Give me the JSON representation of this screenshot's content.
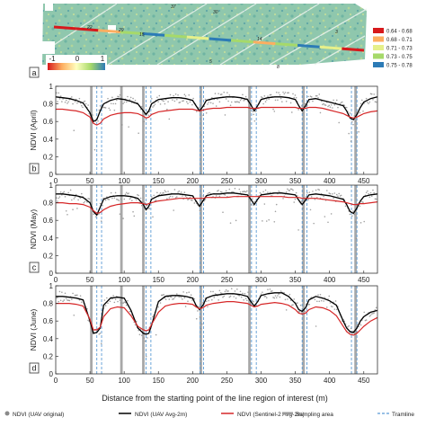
{
  "panel_a": {
    "panel_label": "a",
    "colorbar_ticks": [
      "-1",
      "0",
      "1"
    ],
    "legend": [
      {
        "label": "0.64 - 0.68",
        "color": "#d7191c"
      },
      {
        "label": "0.68 - 0.71",
        "color": "#fdae61"
      },
      {
        "label": "0.71 - 0.73",
        "color": "#e6f08a"
      },
      {
        "label": "0.73 - 0.75",
        "color": "#a6d96a"
      },
      {
        "label": "0.75 - 0.78",
        "color": "#2c7bb6"
      }
    ],
    "map_labels": [
      "37",
      "30",
      "22",
      "29",
      "15",
      "14",
      "5",
      "8",
      "3"
    ]
  },
  "chart_data": [
    {
      "type": "line",
      "panel_label": "b",
      "xlabel": "",
      "ylabel": "NDVI (April)",
      "xlim": [
        0,
        470
      ],
      "ylim": [
        0,
        1
      ],
      "xticks": [
        0,
        50,
        100,
        150,
        200,
        250,
        300,
        350,
        400,
        450
      ],
      "yticks": [
        0,
        0.2,
        0.4,
        0.6,
        0.8,
        1
      ],
      "x": [
        0,
        10,
        20,
        30,
        40,
        50,
        55,
        60,
        65,
        70,
        80,
        90,
        100,
        110,
        120,
        128,
        132,
        136,
        140,
        150,
        160,
        170,
        180,
        190,
        200,
        205,
        210,
        215,
        220,
        230,
        240,
        250,
        260,
        270,
        280,
        285,
        290,
        295,
        300,
        310,
        320,
        330,
        340,
        350,
        355,
        360,
        365,
        370,
        380,
        390,
        400,
        410,
        420,
        425,
        430,
        435,
        440,
        445,
        450,
        460,
        470
      ],
      "series": [
        {
          "name": "NDVI (UAV Avg-2m)",
          "color": "#000000",
          "values": [
            0.88,
            0.87,
            0.86,
            0.84,
            0.81,
            0.7,
            0.6,
            0.62,
            0.72,
            0.8,
            0.84,
            0.86,
            0.85,
            0.83,
            0.8,
            0.72,
            0.68,
            0.72,
            0.8,
            0.85,
            0.86,
            0.87,
            0.87,
            0.86,
            0.84,
            0.78,
            0.72,
            0.77,
            0.84,
            0.86,
            0.87,
            0.88,
            0.88,
            0.87,
            0.85,
            0.79,
            0.72,
            0.78,
            0.85,
            0.87,
            0.88,
            0.88,
            0.87,
            0.85,
            0.78,
            0.72,
            0.78,
            0.85,
            0.86,
            0.84,
            0.82,
            0.8,
            0.78,
            0.72,
            0.64,
            0.62,
            0.68,
            0.76,
            0.82,
            0.86,
            0.88
          ]
        },
        {
          "name": "NDVI (Sentinel-2 Avg-2m)",
          "color": "#d62728",
          "values": [
            0.74,
            0.74,
            0.73,
            0.72,
            0.7,
            0.65,
            0.58,
            0.56,
            0.58,
            0.63,
            0.67,
            0.69,
            0.7,
            0.7,
            0.69,
            0.66,
            0.64,
            0.65,
            0.68,
            0.71,
            0.72,
            0.73,
            0.74,
            0.74,
            0.74,
            0.73,
            0.72,
            0.73,
            0.74,
            0.75,
            0.75,
            0.76,
            0.76,
            0.76,
            0.76,
            0.75,
            0.75,
            0.75,
            0.76,
            0.76,
            0.76,
            0.76,
            0.76,
            0.76,
            0.75,
            0.75,
            0.75,
            0.76,
            0.76,
            0.75,
            0.73,
            0.71,
            0.69,
            0.67,
            0.65,
            0.64,
            0.65,
            0.67,
            0.69,
            0.71,
            0.72
          ]
        }
      ],
      "sampling_areas": [
        52,
        96,
        128,
        212,
        283,
        362,
        438
      ],
      "tramlines": [
        60,
        67,
        132,
        139,
        211,
        216,
        286,
        293,
        360,
        367,
        432,
        440
      ]
    },
    {
      "type": "line",
      "panel_label": "c",
      "xlabel": "",
      "ylabel": "NDVI (May)",
      "xlim": [
        0,
        470
      ],
      "ylim": [
        0,
        1
      ],
      "xticks": [
        0,
        50,
        100,
        150,
        200,
        250,
        300,
        350,
        400,
        450
      ],
      "yticks": [
        0,
        0.2,
        0.4,
        0.6,
        0.8,
        1
      ],
      "x": [
        0,
        10,
        20,
        30,
        40,
        50,
        55,
        60,
        65,
        70,
        80,
        90,
        100,
        110,
        120,
        128,
        132,
        136,
        140,
        150,
        160,
        170,
        180,
        190,
        200,
        205,
        210,
        215,
        220,
        230,
        240,
        250,
        260,
        270,
        280,
        285,
        290,
        295,
        300,
        310,
        320,
        330,
        340,
        350,
        355,
        360,
        365,
        370,
        380,
        390,
        400,
        410,
        420,
        425,
        430,
        435,
        440,
        445,
        450,
        460,
        470
      ],
      "series": [
        {
          "name": "NDVI (UAV Avg-2m)",
          "color": "#000000",
          "values": [
            0.9,
            0.9,
            0.89,
            0.88,
            0.86,
            0.8,
            0.7,
            0.66,
            0.75,
            0.84,
            0.87,
            0.88,
            0.88,
            0.87,
            0.85,
            0.78,
            0.72,
            0.76,
            0.84,
            0.88,
            0.89,
            0.9,
            0.9,
            0.89,
            0.88,
            0.82,
            0.76,
            0.82,
            0.88,
            0.9,
            0.9,
            0.91,
            0.91,
            0.9,
            0.89,
            0.84,
            0.78,
            0.84,
            0.89,
            0.9,
            0.91,
            0.91,
            0.9,
            0.89,
            0.83,
            0.78,
            0.83,
            0.89,
            0.9,
            0.89,
            0.88,
            0.86,
            0.84,
            0.78,
            0.7,
            0.68,
            0.74,
            0.82,
            0.87,
            0.89,
            0.9
          ]
        },
        {
          "name": "NDVI (Sentinel-2 Avg-2m)",
          "color": "#d62728",
          "values": [
            0.8,
            0.8,
            0.79,
            0.79,
            0.78,
            0.75,
            0.71,
            0.68,
            0.69,
            0.72,
            0.76,
            0.78,
            0.79,
            0.8,
            0.8,
            0.79,
            0.78,
            0.79,
            0.8,
            0.82,
            0.83,
            0.84,
            0.85,
            0.85,
            0.85,
            0.85,
            0.85,
            0.85,
            0.86,
            0.86,
            0.86,
            0.86,
            0.87,
            0.87,
            0.87,
            0.87,
            0.87,
            0.87,
            0.87,
            0.87,
            0.87,
            0.87,
            0.86,
            0.86,
            0.86,
            0.85,
            0.85,
            0.85,
            0.85,
            0.84,
            0.83,
            0.82,
            0.81,
            0.8,
            0.79,
            0.78,
            0.78,
            0.79,
            0.79,
            0.8,
            0.81
          ]
        }
      ],
      "sampling_areas": [
        52,
        96,
        128,
        212,
        283,
        362,
        438
      ],
      "tramlines": [
        60,
        67,
        132,
        139,
        211,
        216,
        286,
        293,
        360,
        367,
        432,
        440
      ]
    },
    {
      "type": "line",
      "panel_label": "d",
      "xlabel": "Distance from the starting point of the line region of interest (m)",
      "ylabel": "NDVI (June)",
      "xlim": [
        0,
        470
      ],
      "ylim": [
        0,
        1
      ],
      "xticks": [
        0,
        50,
        100,
        150,
        200,
        250,
        300,
        350,
        400,
        450
      ],
      "yticks": [
        0,
        0.2,
        0.4,
        0.6,
        0.8,
        1
      ],
      "x": [
        0,
        10,
        20,
        30,
        40,
        50,
        55,
        60,
        65,
        70,
        80,
        90,
        100,
        110,
        120,
        128,
        132,
        136,
        140,
        150,
        160,
        170,
        180,
        190,
        200,
        205,
        210,
        215,
        220,
        230,
        240,
        250,
        260,
        270,
        280,
        285,
        290,
        295,
        300,
        310,
        320,
        330,
        340,
        350,
        355,
        360,
        365,
        370,
        380,
        390,
        400,
        410,
        420,
        425,
        430,
        435,
        440,
        445,
        450,
        460,
        470
      ],
      "series": [
        {
          "name": "NDVI (UAV Avg-2m)",
          "color": "#000000",
          "values": [
            0.88,
            0.88,
            0.87,
            0.86,
            0.84,
            0.6,
            0.46,
            0.47,
            0.52,
            0.78,
            0.86,
            0.87,
            0.86,
            0.72,
            0.52,
            0.46,
            0.45,
            0.46,
            0.55,
            0.82,
            0.88,
            0.89,
            0.89,
            0.88,
            0.86,
            0.78,
            0.73,
            0.78,
            0.86,
            0.89,
            0.9,
            0.91,
            0.91,
            0.9,
            0.88,
            0.82,
            0.77,
            0.82,
            0.89,
            0.91,
            0.92,
            0.92,
            0.88,
            0.8,
            0.73,
            0.71,
            0.75,
            0.84,
            0.88,
            0.86,
            0.83,
            0.78,
            0.6,
            0.52,
            0.48,
            0.47,
            0.52,
            0.6,
            0.65,
            0.7,
            0.72
          ]
        },
        {
          "name": "NDVI (Sentinel-2 Avg-2m)",
          "color": "#d62728",
          "values": [
            0.8,
            0.8,
            0.8,
            0.79,
            0.77,
            0.62,
            0.5,
            0.5,
            0.53,
            0.65,
            0.74,
            0.76,
            0.75,
            0.66,
            0.54,
            0.5,
            0.49,
            0.5,
            0.56,
            0.7,
            0.77,
            0.79,
            0.8,
            0.8,
            0.79,
            0.76,
            0.74,
            0.75,
            0.78,
            0.8,
            0.81,
            0.82,
            0.82,
            0.81,
            0.8,
            0.78,
            0.76,
            0.77,
            0.79,
            0.8,
            0.81,
            0.8,
            0.78,
            0.73,
            0.69,
            0.68,
            0.69,
            0.73,
            0.76,
            0.75,
            0.72,
            0.66,
            0.54,
            0.48,
            0.45,
            0.44,
            0.46,
            0.5,
            0.54,
            0.6,
            0.64
          ]
        }
      ],
      "sampling_areas": [
        52,
        96,
        128,
        212,
        283,
        362,
        438
      ],
      "tramlines": [
        60,
        67,
        132,
        139,
        211,
        216,
        286,
        293,
        360,
        367,
        432,
        440
      ]
    }
  ],
  "legend": [
    {
      "label": "NDVI (UAV original)",
      "kind": "dot",
      "color": "#8a8a8a"
    },
    {
      "label": "NDVI (UAV Avg-2m)",
      "kind": "line",
      "color": "#000000"
    },
    {
      "label": "NDVI (Sentinel-2 Avg-2m)",
      "kind": "line",
      "color": "#d62728"
    },
    {
      "label": "Sampling area",
      "kind": "bar",
      "color": "#9a9a9a"
    },
    {
      "label": "Tramline",
      "kind": "dashed",
      "color": "#5b9bd5"
    }
  ]
}
